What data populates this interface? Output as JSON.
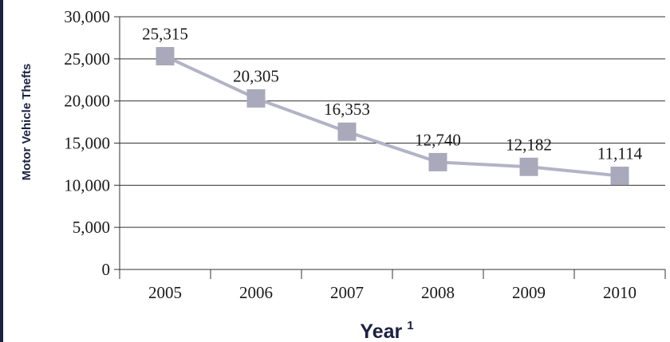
{
  "chart_data": {
    "type": "line",
    "categories": [
      "2005",
      "2006",
      "2007",
      "2008",
      "2009",
      "2010"
    ],
    "series": [
      {
        "values": [
          25315,
          20305,
          16353,
          12740,
          12182,
          11114
        ]
      }
    ],
    "data_labels": [
      "25,315",
      "20,305",
      "16,353",
      "12,740",
      "12,182",
      "11,114"
    ],
    "yticks": [
      0,
      5000,
      10000,
      15000,
      20000,
      25000,
      30000
    ],
    "ytick_labels": [
      "0",
      "5,000",
      "10,000",
      "15,000",
      "20,000",
      "25,000",
      "30,000"
    ],
    "ylim": [
      0,
      30000
    ],
    "ylabel": "Motor Vehicle Thefts",
    "xlabel": "Year",
    "xlabel_footnote": "1",
    "grid": true,
    "line_color": "#b3b3c6",
    "marker_color": "#a9a9bb",
    "border_color": "#1b2140"
  }
}
